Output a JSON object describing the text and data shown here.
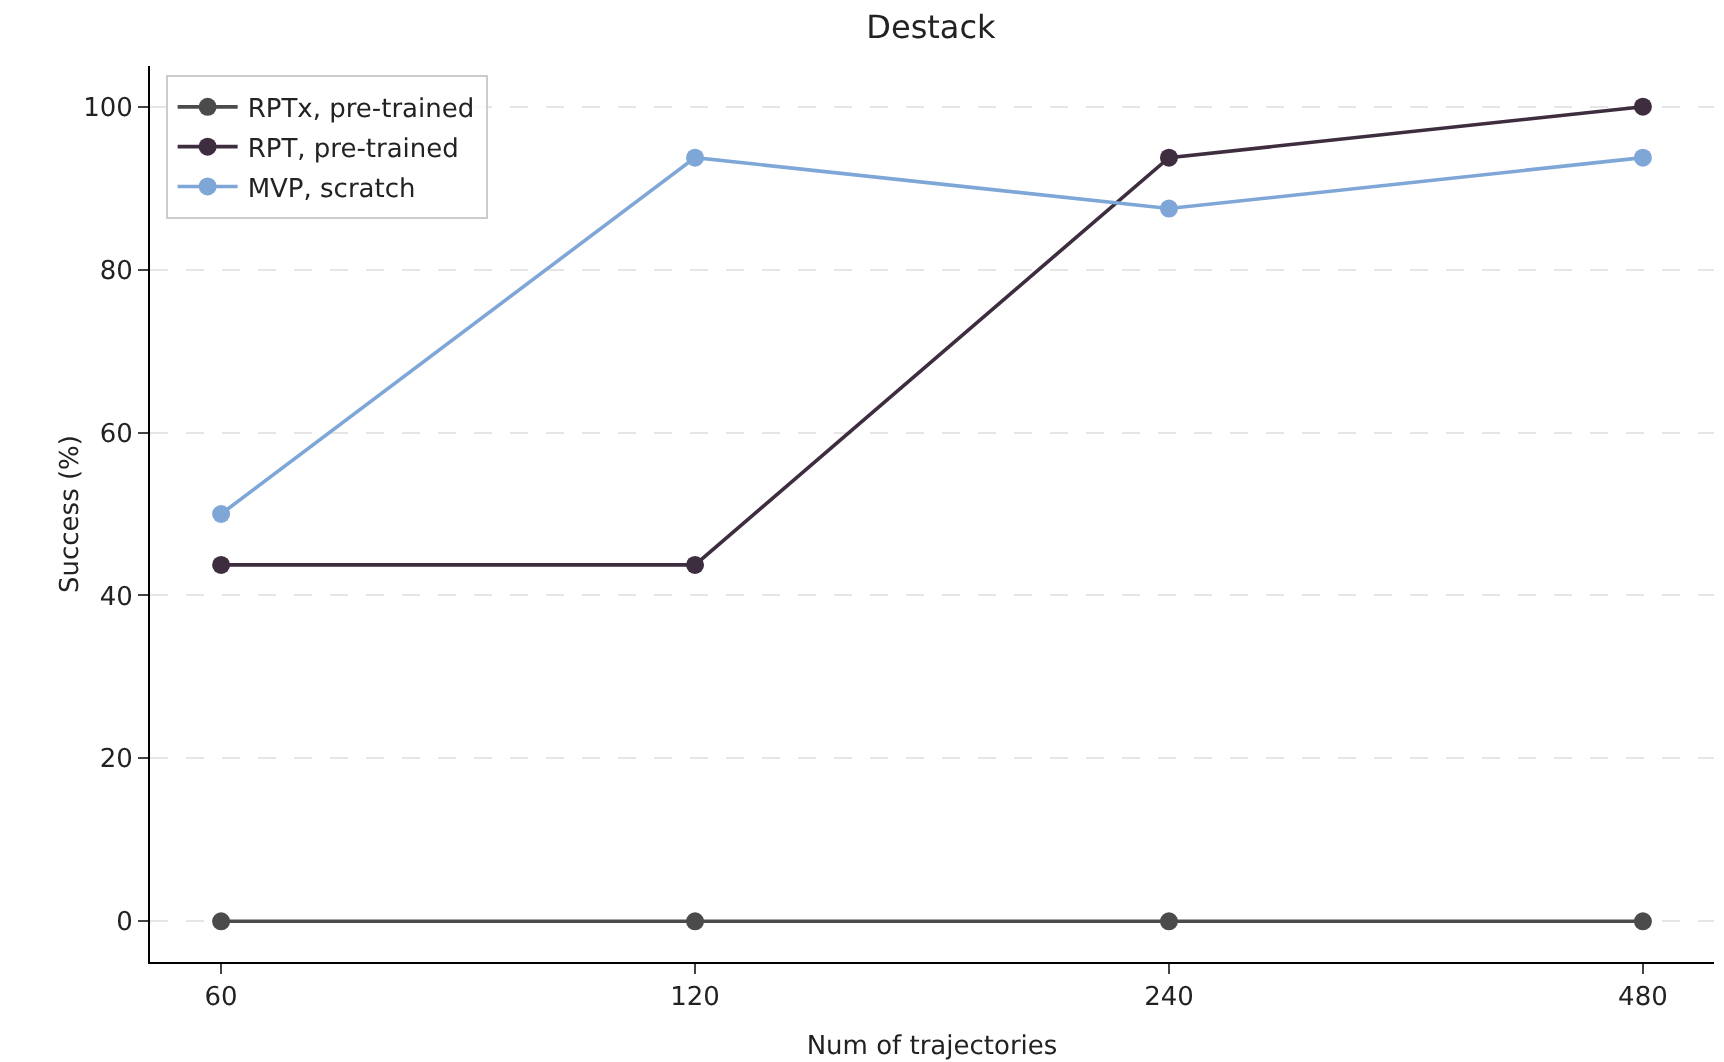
{
  "chart_data": {
    "type": "line",
    "title": "Destack",
    "xlabel": "Num of trajectories",
    "ylabel": "Success (%)",
    "categories": [
      "60",
      "120",
      "240",
      "480"
    ],
    "series": [
      {
        "name": "RPTx, pre-trained",
        "color": "#4b4b4b",
        "values": [
          0,
          0,
          0,
          0
        ]
      },
      {
        "name": "RPT, pre-trained",
        "color": "#3e2c3f",
        "values": [
          43.75,
          43.75,
          93.75,
          100
        ]
      },
      {
        "name": "MVP, scratch",
        "color": "#7ea7d8",
        "values": [
          50,
          93.75,
          87.5,
          93.75
        ]
      }
    ],
    "ylim": [
      -5,
      105
    ],
    "yticks": [
      0,
      20,
      40,
      60,
      80,
      100
    ],
    "grid": "y",
    "legend": "top left",
    "marker": "circle",
    "line_style": "solid"
  }
}
